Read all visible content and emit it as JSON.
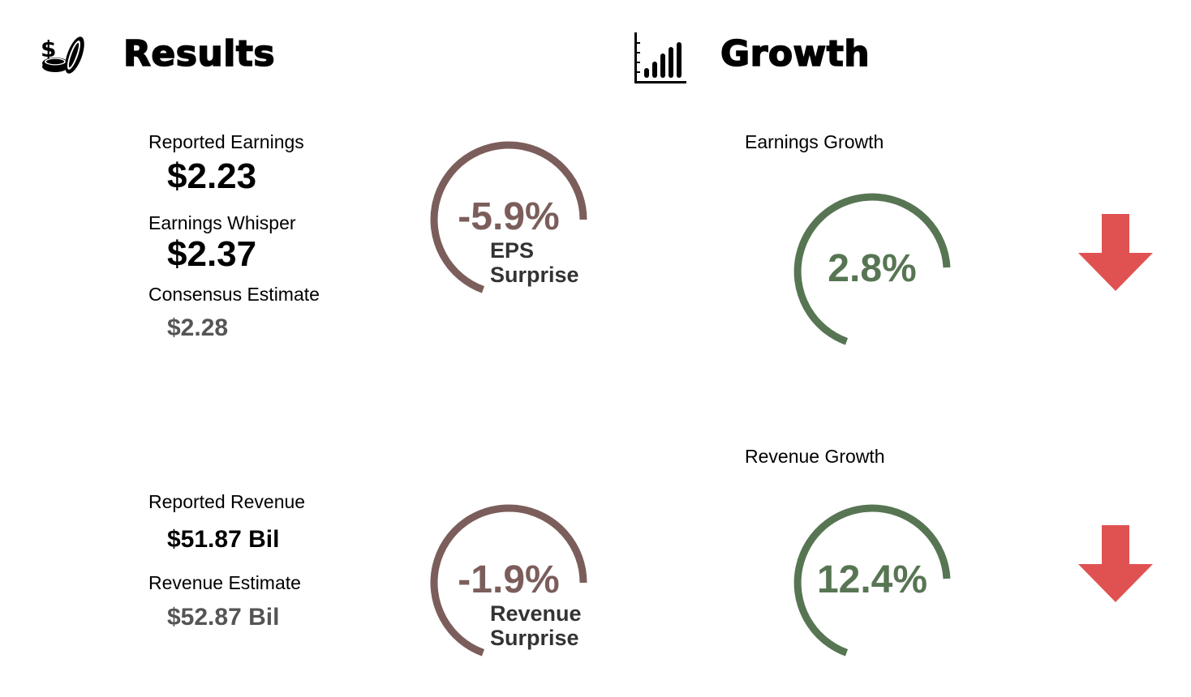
{
  "results": {
    "title": "Results",
    "icon": "coins-dollar-icon",
    "reported_earnings_label": "Reported Earnings",
    "reported_earnings_value": "$2.23",
    "earnings_whisper_label": "Earnings Whisper",
    "earnings_whisper_value": "$2.37",
    "consensus_label": "Consensus Estimate",
    "consensus_value": "$2.28",
    "reported_revenue_label": "Reported Revenue",
    "reported_revenue_value": "$51.87 Bil",
    "revenue_estimate_label": "Revenue Estimate",
    "revenue_estimate_value": "$52.87 Bil"
  },
  "growth": {
    "title": "Growth",
    "icon": "bar-chart-icon",
    "earnings_growth_label": "Earnings Growth",
    "revenue_growth_label": "Revenue Growth"
  },
  "gauges": {
    "eps_surprise": {
      "value": "-5.9%",
      "caption_line1": "EPS",
      "caption_line2": "Surprise",
      "color": "#7b5e5b"
    },
    "revenue_surprise": {
      "value": "-1.9%",
      "caption_line1": "Revenue",
      "caption_line2": "Surprise",
      "color": "#7b5e5b"
    },
    "earnings_growth": {
      "value": "2.8%",
      "color": "#577553",
      "trend": "down",
      "trend_icon": "arrow-down-icon"
    },
    "revenue_growth": {
      "value": "12.4%",
      "color": "#577553",
      "trend": "down",
      "trend_icon": "arrow-down-icon"
    }
  },
  "colors": {
    "arrow_down": "#e05252",
    "muted_text": "#555555"
  }
}
